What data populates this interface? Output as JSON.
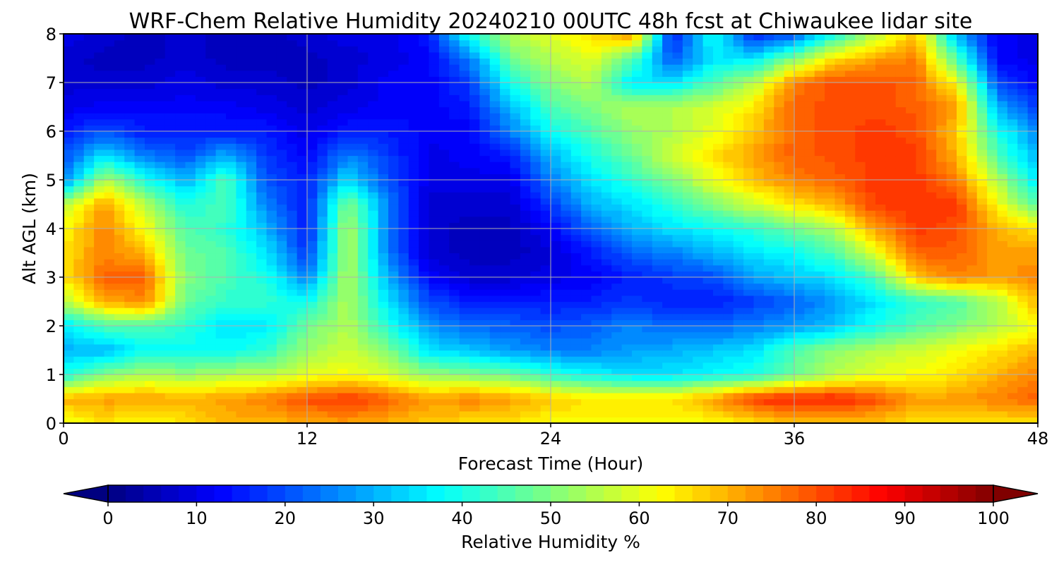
{
  "chart_data": {
    "type": "heatmap",
    "title": "WRF-Chem Relative Humidity 20240210 00UTC 48h fcst at Chiwaukee lidar site",
    "xlabel": "Forecast Time (Hour)",
    "ylabel": "Alt AGL (km)",
    "xlim": [
      0,
      48
    ],
    "ylim": [
      0,
      8
    ],
    "x_ticks": [
      0,
      12,
      24,
      36,
      48
    ],
    "y_ticks": [
      0,
      1,
      2,
      3,
      4,
      5,
      6,
      7,
      8
    ],
    "grid": true,
    "colormap": "jet",
    "colorbar": {
      "label": "Relative Humidity %",
      "range": [
        0,
        100
      ],
      "ticks": [
        0,
        10,
        20,
        30,
        40,
        50,
        60,
        70,
        80,
        90,
        100
      ],
      "extend": "both",
      "placement": "bottom"
    },
    "hours": [
      0,
      2,
      4,
      6,
      8,
      10,
      12,
      14,
      16,
      18,
      20,
      22,
      24,
      26,
      28,
      30,
      32,
      34,
      36,
      38,
      40,
      42,
      44,
      46,
      48
    ],
    "altitudes_km": [
      0,
      0.5,
      1,
      1.5,
      2,
      2.5,
      3,
      3.5,
      4,
      4.5,
      5,
      5.5,
      6,
      6.5,
      7,
      7.5,
      8
    ],
    "values_by_hour": [
      [
        60,
        70,
        40,
        30,
        35,
        55,
        65,
        65,
        62,
        55,
        25,
        20,
        15,
        10,
        8,
        8,
        10
      ],
      [
        65,
        72,
        50,
        30,
        45,
        70,
        78,
        75,
        75,
        72,
        55,
        35,
        20,
        12,
        8,
        6,
        8
      ],
      [
        62,
        72,
        55,
        38,
        45,
        75,
        78,
        70,
        62,
        55,
        40,
        25,
        15,
        12,
        8,
        6,
        6
      ],
      [
        65,
        70,
        52,
        38,
        42,
        48,
        50,
        48,
        45,
        40,
        30,
        20,
        15,
        12,
        10,
        8,
        8
      ],
      [
        70,
        72,
        55,
        38,
        35,
        42,
        45,
        45,
        42,
        45,
        45,
        30,
        15,
        12,
        8,
        6,
        6
      ],
      [
        70,
        75,
        55,
        42,
        35,
        42,
        40,
        35,
        30,
        25,
        20,
        18,
        15,
        10,
        8,
        6,
        6
      ],
      [
        70,
        80,
        60,
        52,
        48,
        38,
        25,
        18,
        15,
        15,
        15,
        12,
        10,
        8,
        6,
        6,
        8
      ],
      [
        72,
        82,
        62,
        58,
        55,
        55,
        55,
        55,
        55,
        50,
        35,
        25,
        15,
        10,
        8,
        8,
        10
      ],
      [
        70,
        78,
        58,
        50,
        40,
        35,
        30,
        25,
        25,
        25,
        20,
        18,
        15,
        12,
        12,
        10,
        10
      ],
      [
        68,
        72,
        52,
        35,
        28,
        20,
        12,
        8,
        8,
        8,
        10,
        10,
        12,
        12,
        12,
        12,
        15
      ],
      [
        65,
        75,
        50,
        32,
        22,
        15,
        8,
        6,
        6,
        8,
        10,
        12,
        12,
        15,
        18,
        25,
        40
      ],
      [
        65,
        72,
        48,
        28,
        22,
        15,
        8,
        6,
        6,
        8,
        10,
        15,
        25,
        30,
        40,
        48,
        55
      ],
      [
        62,
        68,
        42,
        25,
        20,
        15,
        10,
        8,
        12,
        18,
        25,
        30,
        38,
        45,
        50,
        55,
        60
      ],
      [
        62,
        65,
        38,
        25,
        22,
        15,
        12,
        15,
        22,
        30,
        35,
        40,
        45,
        50,
        55,
        60,
        65
      ],
      [
        62,
        65,
        35,
        28,
        25,
        18,
        15,
        22,
        30,
        35,
        42,
        48,
        52,
        55,
        35,
        45,
        75
      ],
      [
        62,
        65,
        35,
        30,
        22,
        15,
        18,
        25,
        35,
        42,
        50,
        58,
        55,
        55,
        35,
        20,
        15
      ],
      [
        62,
        72,
        38,
        32,
        22,
        15,
        20,
        30,
        38,
        50,
        60,
        65,
        60,
        58,
        45,
        35,
        40
      ],
      [
        65,
        82,
        40,
        35,
        25,
        18,
        28,
        35,
        42,
        58,
        68,
        72,
        68,
        65,
        55,
        35,
        15
      ],
      [
        68,
        85,
        48,
        45,
        28,
        22,
        32,
        38,
        48,
        65,
        75,
        78,
        78,
        78,
        75,
        50,
        20
      ],
      [
        68,
        85,
        55,
        52,
        32,
        28,
        35,
        45,
        55,
        70,
        78,
        80,
        80,
        80,
        80,
        65,
        40
      ],
      [
        68,
        80,
        60,
        55,
        40,
        35,
        45,
        60,
        72,
        82,
        82,
        82,
        82,
        80,
        80,
        72,
        55
      ],
      [
        65,
        72,
        62,
        58,
        45,
        42,
        68,
        78,
        82,
        82,
        82,
        82,
        80,
        78,
        78,
        75,
        68
      ],
      [
        65,
        72,
        65,
        62,
        50,
        45,
        75,
        78,
        80,
        82,
        75,
        70,
        68,
        72,
        62,
        45,
        30
      ],
      [
        65,
        75,
        70,
        65,
        55,
        55,
        72,
        72,
        70,
        62,
        55,
        45,
        40,
        30,
        20,
        12,
        12
      ],
      [
        65,
        78,
        75,
        70,
        62,
        70,
        75,
        72,
        65,
        45,
        35,
        30,
        25,
        18,
        12,
        10,
        10
      ]
    ]
  }
}
